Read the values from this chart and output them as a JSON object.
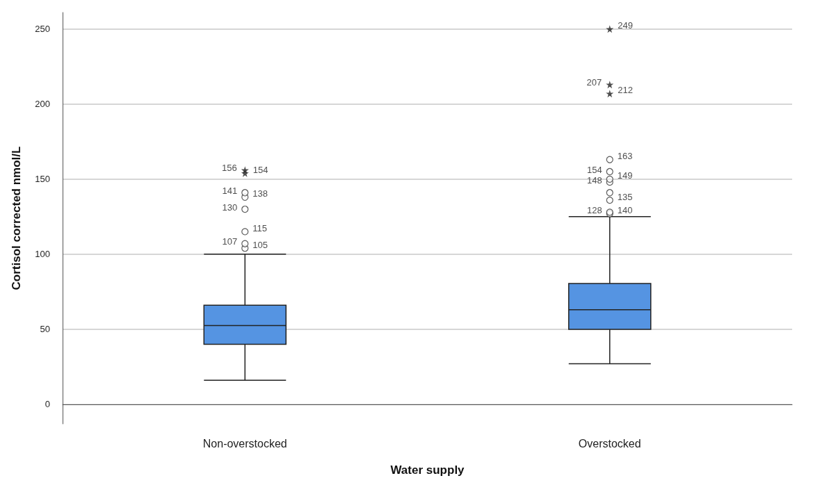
{
  "chart_data": {
    "type": "box",
    "xlabel": "Water supply",
    "ylabel": "Cortisol corrected nmol/L",
    "categories": [
      "Non-overstocked",
      "Overstocked"
    ],
    "series": [
      {
        "color": "#5594e2",
        "boxes": [
          {
            "low": 16,
            "q1": 40,
            "median": 52.5,
            "q3": 66,
            "high": 100
          },
          {
            "low": 27,
            "q1": 50,
            "median": 63,
            "q3": 80.5,
            "high": 125
          }
        ]
      },
      {
        "type": "scatter",
        "marker": "star",
        "color": "#222222",
        "x": [
          "Non-overstocked",
          "Non-overstocked",
          "Overstocked",
          "Overstocked",
          "Overstocked"
        ],
        "values": [
          154,
          156,
          207,
          213,
          250
        ]
      },
      {
        "type": "scatter",
        "marker": "circle",
        "color": "#333333",
        "x": [
          "Non-overstocked",
          "Non-overstocked",
          "Non-overstocked",
          "Non-overstocked",
          "Non-overstocked",
          "Non-overstocked",
          "Overstocked",
          "Overstocked",
          "Overstocked",
          "Overstocked",
          "Overstocked",
          "Overstocked",
          "Overstocked",
          "Overstocked"
        ],
        "values": [
          104,
          107,
          115,
          130,
          138,
          141,
          127,
          128,
          136,
          148,
          150,
          155,
          163,
          141
        ]
      }
    ],
    "annotations": [
      "154",
      "156",
      "212",
      "207",
      "249",
      "105",
      "107",
      "115",
      "130",
      "138",
      "141",
      "140",
      "128",
      "135",
      "148",
      "149",
      "154",
      "163"
    ],
    "ylim": [
      -13,
      261
    ],
    "yticks": [
      0,
      50,
      100,
      150,
      200,
      250
    ],
    "grid": "y"
  }
}
